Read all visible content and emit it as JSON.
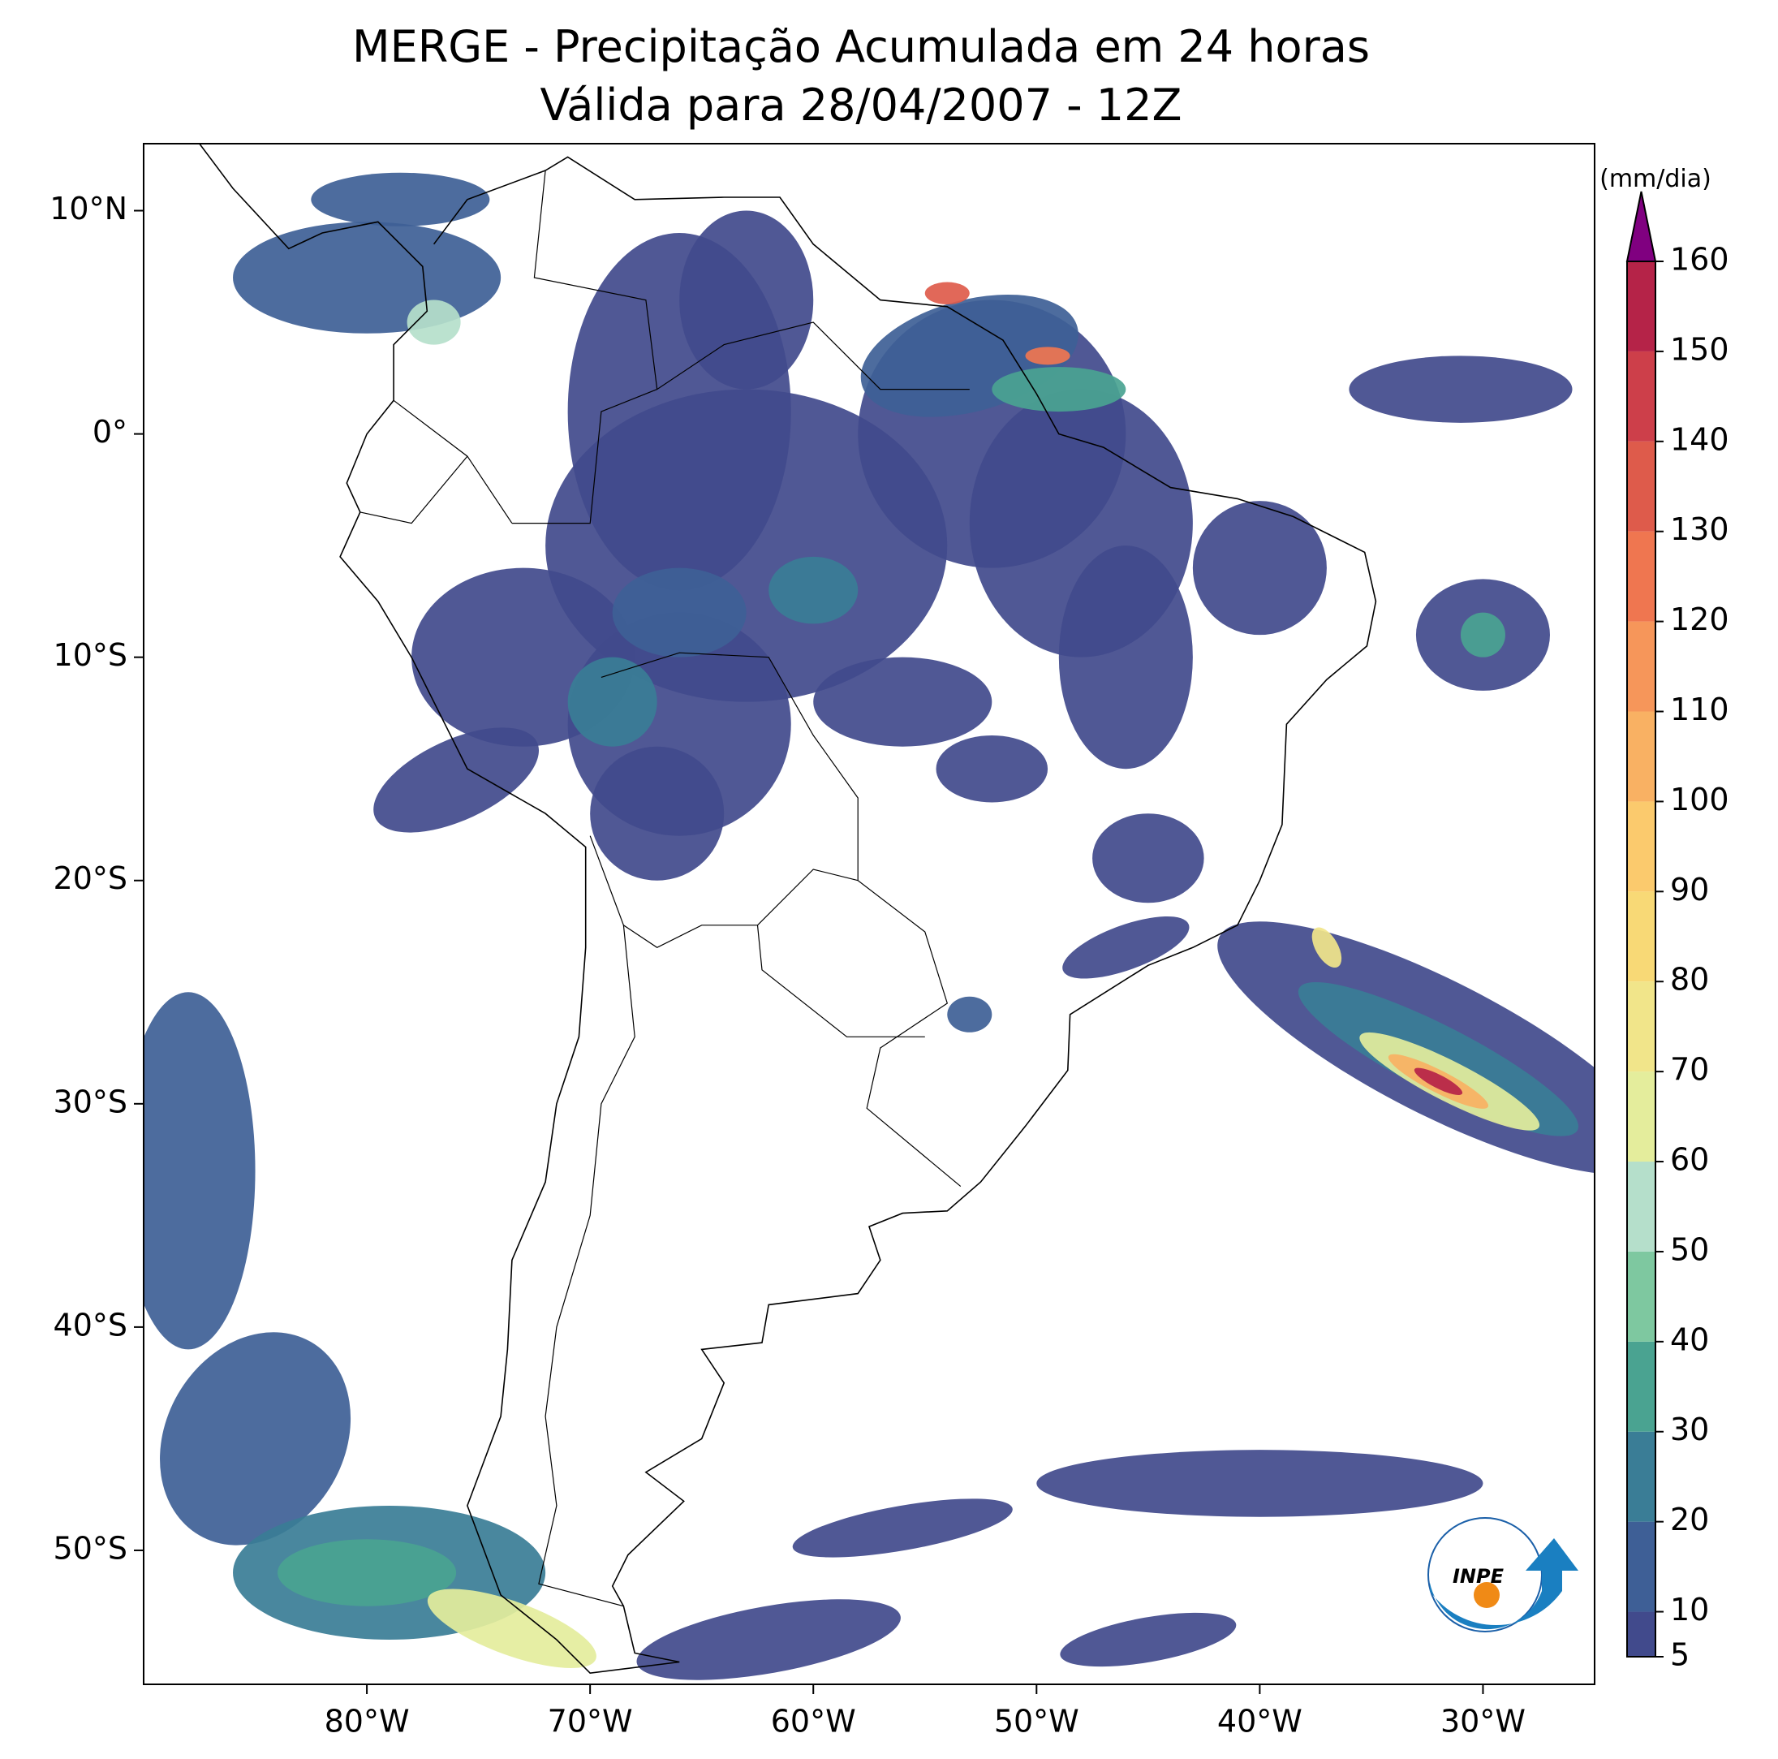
{
  "map": {
    "title": "MERGE - Precipitação Acumulada em 24 horas",
    "subtitle": "Válida para 28/04/2007 - 12Z",
    "xlim": [
      -90,
      -25
    ],
    "ylim": [
      -56,
      13
    ],
    "xticks": [
      {
        "value": -80,
        "label": "80°W"
      },
      {
        "value": -70,
        "label": "70°W"
      },
      {
        "value": -60,
        "label": "60°W"
      },
      {
        "value": -50,
        "label": "50°W"
      },
      {
        "value": -40,
        "label": "40°W"
      },
      {
        "value": -30,
        "label": "30°W"
      }
    ],
    "yticks": [
      {
        "value": 10,
        "label": "10°N"
      },
      {
        "value": 0,
        "label": "0°"
      },
      {
        "value": -10,
        "label": "10°S"
      },
      {
        "value": -20,
        "label": "20°S"
      },
      {
        "value": -30,
        "label": "30°S"
      },
      {
        "value": -40,
        "label": "40°S"
      },
      {
        "value": -50,
        "label": "50°S"
      }
    ],
    "colorbar": {
      "label": "(mm/dia)",
      "lim": [
        5,
        160
      ],
      "ticks": [
        5,
        10,
        20,
        30,
        40,
        50,
        60,
        70,
        80,
        90,
        100,
        110,
        120,
        130,
        140,
        150,
        160
      ],
      "colors": [
        "#414a8c",
        "#3e5f96",
        "#3a7d96",
        "#4aa391",
        "#7ec8a0",
        "#b5dfcb",
        "#e4ed9c",
        "#f1e58a",
        "#f8d976",
        "#fbca6d",
        "#f9b163",
        "#f6965a",
        "#ef7650",
        "#de5b4b",
        "#cd3f4a",
        "#b52348"
      ],
      "extend_color": "#800080"
    },
    "logo": "INPE"
  }
}
